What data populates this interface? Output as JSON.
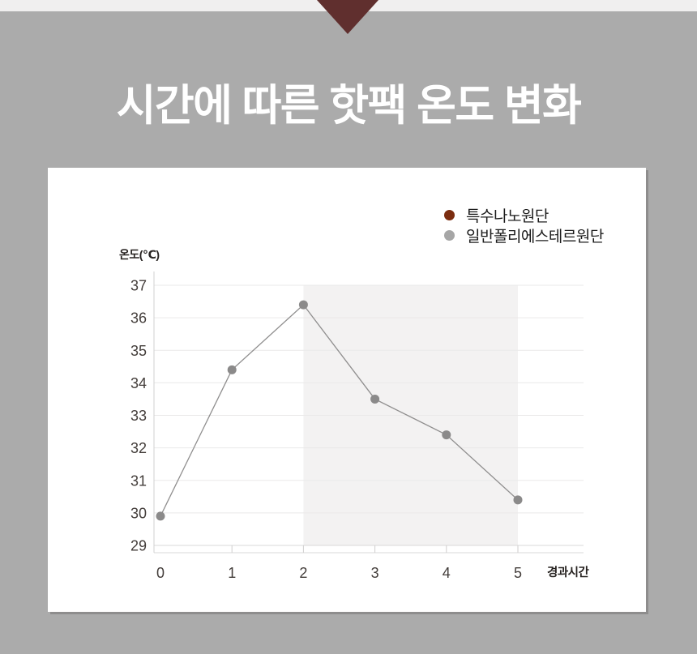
{
  "page": {
    "title": "시간에 따른 핫팩 온도 변화"
  },
  "colors": {
    "background": "#ababab",
    "top_strip": "#f0efef",
    "arrow": "#602f2e",
    "card": "#ffffff",
    "card_shadow": "#8e8d8d",
    "accent_red": "#7b2d10",
    "line_gray": "#8b8a8a",
    "shade": "#f3f2f2",
    "grid": "#eae9e9",
    "axis": "#d2d1d1",
    "tick_label": "#433d3a"
  },
  "chart_data": {
    "type": "line",
    "title": "시간에 따른 핫팩 온도 변화",
    "x": [
      0,
      1,
      2,
      3,
      4,
      5
    ],
    "xlabel": "경과시간",
    "ylabel": "온도(℃)",
    "ylim": [
      29,
      37
    ],
    "ytick_step": 1,
    "grid": true,
    "legend_position": "top-right",
    "shaded_x_range": [
      2,
      5
    ],
    "shade_color": "#f3f2f2",
    "series": [
      {
        "name": "특수나노원단",
        "legend_color": "#7b2d10",
        "color": "#7b2d10",
        "values": []
      },
      {
        "name": "일반폴리에스테르원단",
        "legend_color": "#a6a6a6",
        "color": "#8b8a8a",
        "values": [
          29.9,
          34.4,
          36.4,
          33.5,
          32.4,
          30.4
        ]
      }
    ]
  }
}
